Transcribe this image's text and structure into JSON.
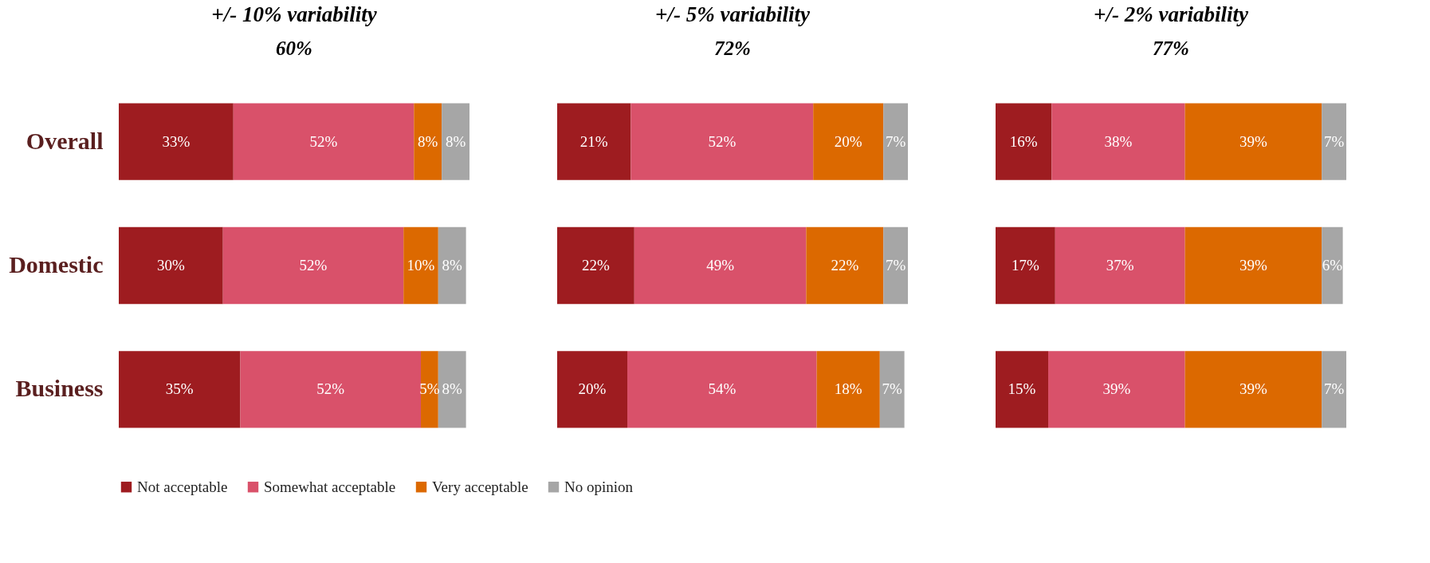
{
  "chart_data": [
    {
      "type": "bar",
      "orientation": "horizontal",
      "stacked": true,
      "title": "+/- 10% variability",
      "annotations": [
        "60%"
      ],
      "categories": [
        "Overall",
        "Domestic",
        "Business"
      ],
      "legend": "bottom",
      "tick_labels": "y",
      "series": [
        {
          "name": "Not acceptable",
          "color": "#9e1c20",
          "values": [
            33,
            30,
            35
          ],
          "value_labels": [
            "33%",
            "30%",
            "35%"
          ]
        },
        {
          "name": "Somewhat acceptable",
          "color": "#d9516a",
          "values": [
            52,
            52,
            52
          ],
          "value_labels": [
            "52%",
            "52%",
            "52%"
          ]
        },
        {
          "name": "Very acceptable",
          "color": "#dc6900",
          "values": [
            8,
            10,
            5
          ],
          "value_labels": [
            "8%",
            "10%",
            "5%"
          ]
        },
        {
          "name": "No opinion",
          "color": "#a6a6a6",
          "values": [
            8,
            8,
            8
          ],
          "value_labels": [
            "8%",
            "8%",
            "8%"
          ]
        }
      ]
    },
    {
      "type": "bar",
      "orientation": "horizontal",
      "stacked": true,
      "title": "+/- 5% variability",
      "annotations": [
        "72%"
      ],
      "categories": [
        null,
        null,
        null
      ],
      "tick_labels": false,
      "series": [
        {
          "name": "Not acceptable",
          "color": "#9e1c20",
          "values": [
            21,
            22,
            20
          ],
          "value_labels": [
            "21%",
            "22%",
            "20%"
          ]
        },
        {
          "name": "Somewhat acceptable",
          "color": "#d9516a",
          "values": [
            52,
            49,
            54
          ],
          "value_labels": [
            "52%",
            "49%",
            "54%"
          ]
        },
        {
          "name": "Very acceptable",
          "color": "#dc6900",
          "values": [
            20,
            22,
            18
          ],
          "value_labels": [
            "20%",
            "22%",
            "18%"
          ]
        },
        {
          "name": "No opinion",
          "color": "#a6a6a6",
          "values": [
            7,
            7,
            7
          ],
          "value_labels": [
            "7%",
            "7%",
            "7%"
          ]
        }
      ]
    },
    {
      "type": "bar",
      "orientation": "horizontal",
      "stacked": true,
      "title": "+/- 2% variability",
      "annotations": [
        "77%"
      ],
      "categories": [
        null,
        null,
        null
      ],
      "tick_labels": false,
      "series": [
        {
          "name": "Not acceptable",
          "color": "#9e1c20",
          "values": [
            16,
            17,
            15
          ],
          "value_labels": [
            "16%",
            "17%",
            "15%"
          ]
        },
        {
          "name": "Somewhat acceptable",
          "color": "#d9516a",
          "values": [
            38,
            37,
            39
          ],
          "value_labels": [
            "38%",
            "37%",
            "39%"
          ]
        },
        {
          "name": "Very acceptable",
          "color": "#dc6900",
          "values": [
            39,
            39,
            39
          ],
          "value_labels": [
            "39%",
            "39%",
            "39%"
          ]
        },
        {
          "name": "No opinion",
          "color": "#a6a6a6",
          "values": [
            7,
            6,
            7
          ],
          "value_labels": [
            "7%",
            "6%",
            "7%"
          ]
        }
      ]
    }
  ]
}
